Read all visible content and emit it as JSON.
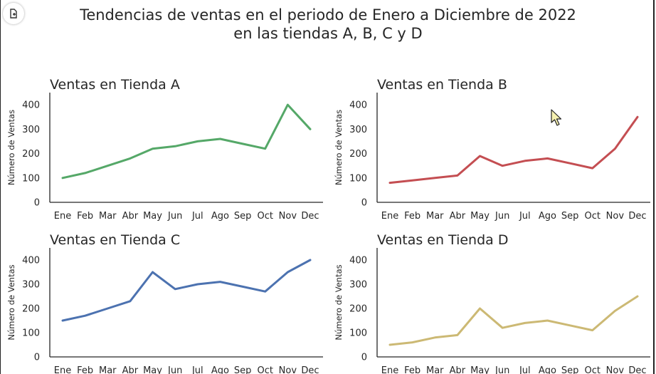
{
  "window": {
    "corner_icon": "document-open-icon"
  },
  "suptitle": {
    "line1": "Tendencias de ventas en el periodo de Enero a Diciembre de 2022",
    "line2": "en las tiendas A, B, C y D"
  },
  "chart_data": [
    {
      "type": "line",
      "title": "Ventas en Tienda A",
      "xlabel": "",
      "ylabel": "Número de Ventas",
      "categories": [
        "Ene",
        "Feb",
        "Mar",
        "Abr",
        "May",
        "Jun",
        "Jul",
        "Ago",
        "Sep",
        "Oct",
        "Nov",
        "Dec"
      ],
      "values": [
        100,
        120,
        150,
        180,
        220,
        230,
        250,
        260,
        240,
        220,
        400,
        300
      ],
      "yticks": [
        0,
        100,
        200,
        300,
        400
      ],
      "ylim": [
        0,
        450
      ],
      "color": "#55a868",
      "grid": false
    },
    {
      "type": "line",
      "title": "Ventas en Tienda B",
      "xlabel": "",
      "ylabel": "Número de Ventas",
      "categories": [
        "Ene",
        "Feb",
        "Mar",
        "Abr",
        "May",
        "Jun",
        "Jul",
        "Ago",
        "Sep",
        "Oct",
        "Nov",
        "Dec"
      ],
      "values": [
        80,
        90,
        100,
        110,
        190,
        150,
        170,
        180,
        160,
        140,
        220,
        350
      ],
      "yticks": [
        0,
        100,
        200,
        300,
        400
      ],
      "ylim": [
        0,
        450
      ],
      "color": "#c44e52",
      "grid": false
    },
    {
      "type": "line",
      "title": "Ventas en Tienda C",
      "xlabel": "",
      "ylabel": "Número de Ventas",
      "categories": [
        "Ene",
        "Feb",
        "Mar",
        "Abr",
        "May",
        "Jun",
        "Jul",
        "Ago",
        "Sep",
        "Oct",
        "Nov",
        "Dec"
      ],
      "values": [
        150,
        170,
        200,
        230,
        350,
        280,
        300,
        310,
        290,
        270,
        350,
        400
      ],
      "yticks": [
        0,
        100,
        200,
        300,
        400
      ],
      "ylim": [
        0,
        450
      ],
      "color": "#4c72b0",
      "grid": false
    },
    {
      "type": "line",
      "title": "Ventas en Tienda D",
      "xlabel": "",
      "ylabel": "Número de Ventas",
      "categories": [
        "Ene",
        "Feb",
        "Mar",
        "Abr",
        "May",
        "Jun",
        "Jul",
        "Ago",
        "Sep",
        "Oct",
        "Nov",
        "Dec"
      ],
      "values": [
        50,
        60,
        80,
        90,
        200,
        120,
        140,
        150,
        130,
        110,
        190,
        250
      ],
      "yticks": [
        0,
        100,
        200,
        300,
        400
      ],
      "ylim": [
        0,
        450
      ],
      "color": "#ccb974",
      "grid": false
    }
  ]
}
